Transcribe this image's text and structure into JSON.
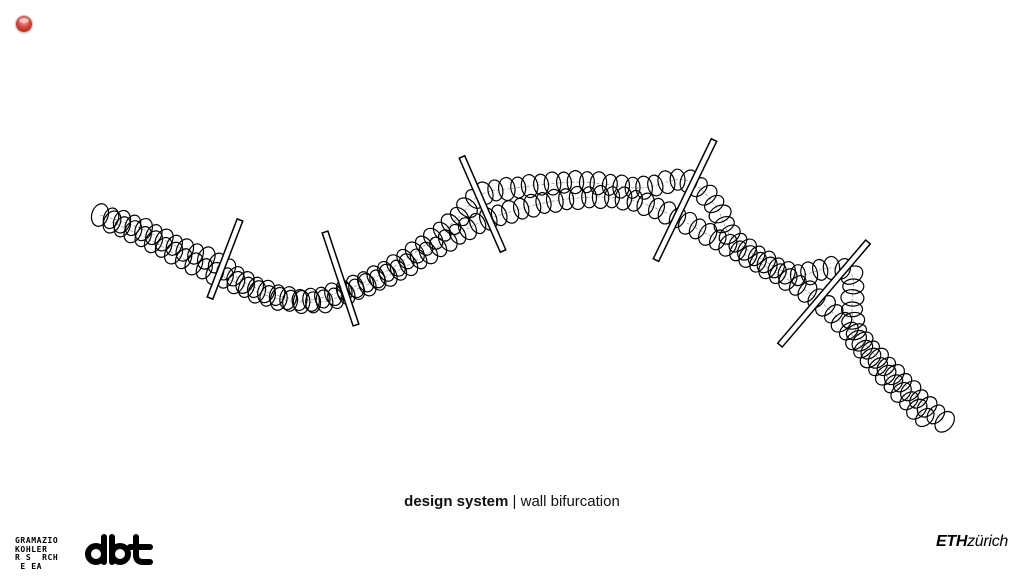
{
  "caption": {
    "bold": "design system",
    "separator": " | ",
    "rest": "wall bifurcation"
  },
  "logos": {
    "gramazio_kohler": {
      "line1": "GRAMAZIO",
      "line2": "KOHLER",
      "line3": "R S  RCH",
      "line4": " E EA"
    },
    "dbt": "dbt",
    "eth": {
      "bold": "ETH",
      "rest": "zürich"
    }
  },
  "colors": {
    "stroke": "#000000",
    "centerline": "#9a9a9a",
    "record": "#d9473d"
  },
  "icons": {
    "record": "record-button-icon"
  }
}
